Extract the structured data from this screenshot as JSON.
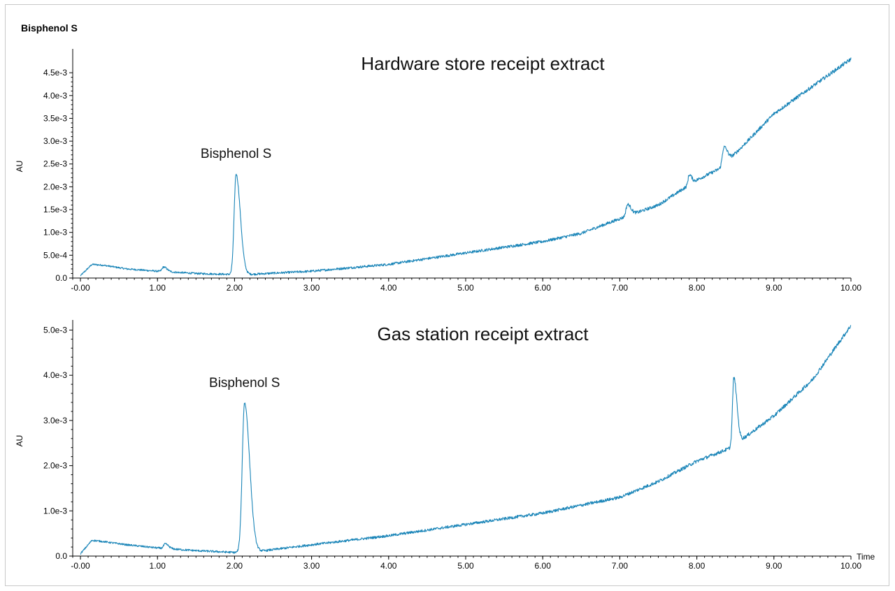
{
  "header": {
    "compound_label": "Bisphenol S"
  },
  "chart_data": [
    {
      "type": "line",
      "title": "Hardware store receipt extract",
      "ylabel": "AU",
      "xlabel": "",
      "xlim": [
        -0.1,
        10.0
      ],
      "ylim": [
        0.0,
        0.0049
      ],
      "x_ticks": [
        -0.0,
        1.0,
        2.0,
        3.0,
        4.0,
        5.0,
        6.0,
        7.0,
        8.0,
        9.0,
        10.0
      ],
      "x_tick_labels": [
        "-0.00",
        "1.00",
        "2.00",
        "3.00",
        "4.00",
        "5.00",
        "6.00",
        "7.00",
        "8.00",
        "9.00",
        "10.00"
      ],
      "y_ticks": [
        0.0,
        0.0005,
        0.001,
        0.0015,
        0.002,
        0.0025,
        0.003,
        0.0035,
        0.004,
        0.0045
      ],
      "y_tick_labels": [
        "0.0",
        "5.0e-4",
        "1.0e-3",
        "1.5e-3",
        "2.0e-3",
        "2.5e-3",
        "3.0e-3",
        "3.5e-3",
        "4.0e-3",
        "4.5e-3"
      ],
      "grid": false,
      "color": "#1a85b8",
      "annotations": [
        {
          "text": "Bisphenol S",
          "x": 2.02,
          "y": 0.0023
        }
      ],
      "baseline": [
        [
          0.0,
          5e-05
        ],
        [
          0.15,
          0.0003
        ],
        [
          0.3,
          0.00028
        ],
        [
          0.6,
          0.0002
        ],
        [
          1.0,
          0.00015
        ],
        [
          1.5,
          0.0001
        ],
        [
          1.95,
          8e-05
        ],
        [
          2.2,
          8e-05
        ],
        [
          3.0,
          0.00015
        ],
        [
          4.0,
          0.0003
        ],
        [
          5.0,
          0.00055
        ],
        [
          6.0,
          0.0008
        ],
        [
          6.5,
          0.00098
        ],
        [
          7.0,
          0.0013
        ],
        [
          7.5,
          0.0016
        ],
        [
          8.0,
          0.00215
        ],
        [
          8.3,
          0.0024
        ],
        [
          8.6,
          0.0029
        ],
        [
          9.0,
          0.0036
        ],
        [
          9.5,
          0.0042
        ],
        [
          10.0,
          0.0048
        ]
      ],
      "peaks": [
        {
          "x": 1.08,
          "height": 0.0001,
          "width": 0.02
        },
        {
          "x": 2.02,
          "height": 0.0022,
          "width": 0.025
        },
        {
          "x": 7.1,
          "height": 0.00025,
          "width": 0.02
        },
        {
          "x": 7.9,
          "height": 0.00022,
          "width": 0.015
        },
        {
          "x": 8.35,
          "height": 0.00038,
          "width": 0.02
        }
      ]
    },
    {
      "type": "line",
      "title": "Gas station receipt extract",
      "ylabel": "AU",
      "xlabel": "Time",
      "xlim": [
        -0.1,
        10.0
      ],
      "ylim": [
        0.0,
        0.0051
      ],
      "x_ticks": [
        -0.0,
        1.0,
        2.0,
        3.0,
        4.0,
        5.0,
        6.0,
        7.0,
        8.0,
        9.0,
        10.0
      ],
      "x_tick_labels": [
        "-0.00",
        "1.00",
        "2.00",
        "3.00",
        "4.00",
        "5.00",
        "6.00",
        "7.00",
        "8.00",
        "9.00",
        "10.00"
      ],
      "y_ticks": [
        0.0,
        0.001,
        0.002,
        0.003,
        0.004,
        0.005
      ],
      "y_tick_labels": [
        "0.0",
        "1.0e-3",
        "2.0e-3",
        "3.0e-3",
        "4.0e-3",
        "5.0e-3"
      ],
      "grid": false,
      "color": "#1a85b8",
      "annotations": [
        {
          "text": "Bisphenol S",
          "x": 2.13,
          "y": 0.0034
        }
      ],
      "baseline": [
        [
          0.0,
          5e-05
        ],
        [
          0.15,
          0.00035
        ],
        [
          0.3,
          0.00032
        ],
        [
          0.6,
          0.00025
        ],
        [
          1.0,
          0.00018
        ],
        [
          1.5,
          0.00012
        ],
        [
          2.0,
          8e-05
        ],
        [
          2.3,
          0.0001
        ],
        [
          3.0,
          0.00025
        ],
        [
          4.0,
          0.00045
        ],
        [
          5.0,
          0.0007
        ],
        [
          6.0,
          0.00095
        ],
        [
          7.0,
          0.0013
        ],
        [
          7.5,
          0.00165
        ],
        [
          8.0,
          0.0021
        ],
        [
          8.45,
          0.0024
        ],
        [
          8.6,
          0.0026
        ],
        [
          9.0,
          0.0031
        ],
        [
          9.5,
          0.0039
        ],
        [
          10.0,
          0.0051
        ]
      ],
      "peaks": [
        {
          "x": 1.1,
          "height": 0.0001,
          "width": 0.02
        },
        {
          "x": 2.13,
          "height": 0.0033,
          "width": 0.03
        },
        {
          "x": 8.48,
          "height": 0.0015,
          "width": 0.018
        }
      ]
    }
  ]
}
